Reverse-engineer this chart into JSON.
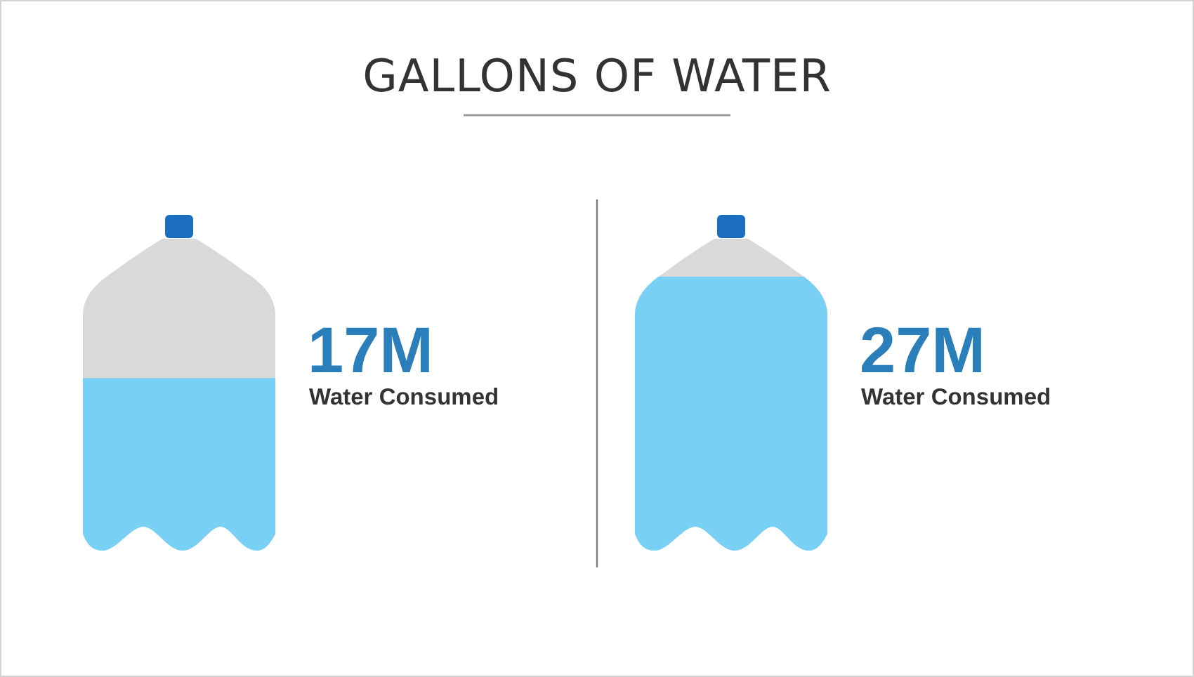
{
  "chart_data": {
    "type": "other",
    "title": "GALLONS OF WATER",
    "categories": [
      "Water Consumed",
      "Water Consumed"
    ],
    "values": [
      17,
      27
    ],
    "value_labels": [
      "17M",
      "27M"
    ],
    "colors": [
      "#78d0f5",
      "#78d0f5"
    ]
  }
}
